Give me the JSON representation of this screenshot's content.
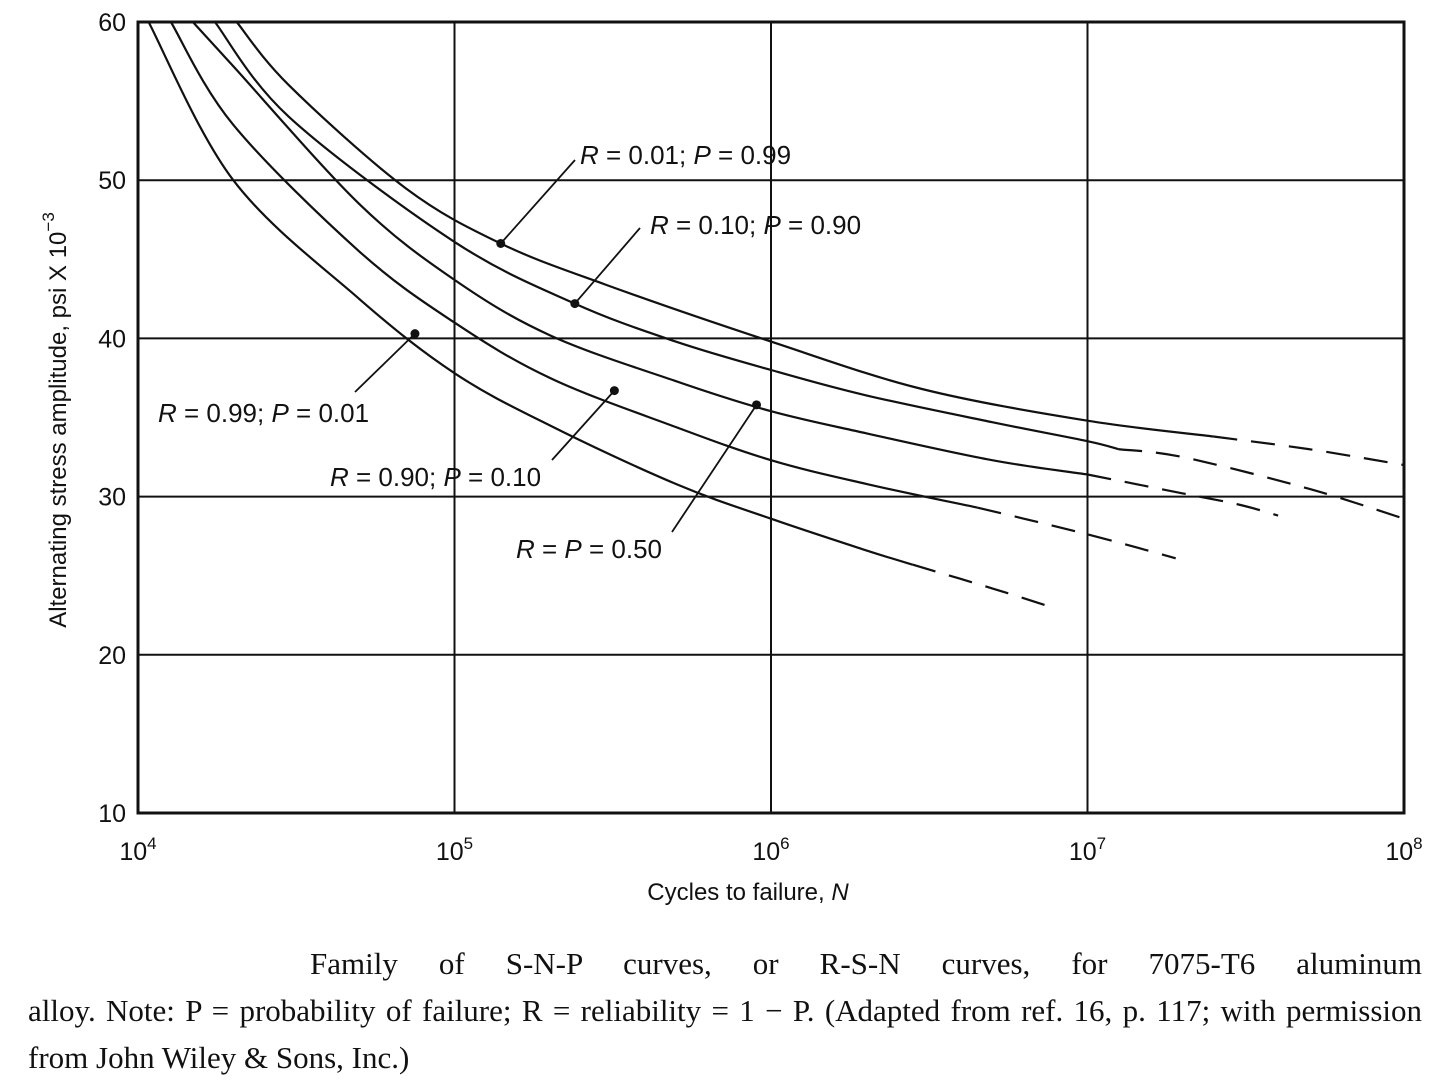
{
  "chart_data": {
    "type": "line",
    "xscale": "log",
    "xlim": [
      10000,
      100000000
    ],
    "ylim": [
      10,
      60
    ],
    "grid": true,
    "xlabel": "Cycles to failure, N",
    "ylabel": "Alternating stress amplitude, psi X 10",
    "ylabel_exponent": "−3",
    "y_ticks": [
      "10",
      "20",
      "30",
      "40",
      "50",
      "60"
    ],
    "x_ticks": [
      {
        "base": "10",
        "exp": "4"
      },
      {
        "base": "10",
        "exp": "5"
      },
      {
        "base": "10",
        "exp": "6"
      },
      {
        "base": "10",
        "exp": "7"
      },
      {
        "base": "10",
        "exp": "8"
      }
    ],
    "series": [
      {
        "name": "R = 0.99; P = 0.01",
        "solid": [
          [
            10800,
            60
          ],
          [
            20000,
            50
          ],
          [
            50000,
            42.5
          ],
          [
            100000,
            37.8
          ],
          [
            200000,
            34.5
          ],
          [
            500000,
            30.8
          ],
          [
            1000000,
            28.6
          ],
          [
            2000000,
            26.6
          ],
          [
            2800000,
            25.7
          ]
        ],
        "dashed": [
          [
            2800000,
            25.7
          ],
          [
            5000000,
            24.2
          ],
          [
            8000000,
            22.9
          ]
        ],
        "marker": [
          75000,
          40.3
        ]
      },
      {
        "name": "R = 0.90; P = 0.10",
        "solid": [
          [
            12700,
            60
          ],
          [
            20000,
            53.5
          ],
          [
            50000,
            45.5
          ],
          [
            100000,
            41
          ],
          [
            200000,
            37.5
          ],
          [
            500000,
            34.4
          ],
          [
            1000000,
            32.3
          ],
          [
            2000000,
            30.8
          ],
          [
            4500000,
            29.3
          ]
        ],
        "dashed": [
          [
            4500000,
            29.3
          ],
          [
            8000000,
            28.1
          ],
          [
            12000000,
            27.2
          ],
          [
            19000000,
            26.1
          ]
        ],
        "marker": [
          320000,
          36.7
        ]
      },
      {
        "name": "R = P = 0.50",
        "solid": [
          [
            14900,
            60
          ],
          [
            20000,
            57.2
          ],
          [
            50000,
            48.5
          ],
          [
            100000,
            43.7
          ],
          [
            200000,
            40.2
          ],
          [
            500000,
            37.3
          ],
          [
            1000000,
            35.4
          ],
          [
            2000000,
            34
          ],
          [
            5000000,
            32.3
          ],
          [
            10000000,
            31.4
          ]
        ],
        "dashed": [
          [
            10000000,
            31.4
          ],
          [
            20000000,
            30.2
          ],
          [
            30000000,
            29.5
          ],
          [
            40000000,
            28.8
          ]
        ],
        "marker": [
          900000,
          35.8
        ]
      },
      {
        "name": "R = 0.10; P = 0.90",
        "solid": [
          [
            17500,
            60
          ],
          [
            30000,
            54
          ],
          [
            100000,
            46.1
          ],
          [
            240000,
            42.2
          ],
          [
            500000,
            39.8
          ],
          [
            1000000,
            38
          ],
          [
            2000000,
            36.4
          ],
          [
            5000000,
            34.7
          ],
          [
            10000000,
            33.5
          ],
          [
            12500000,
            33
          ]
        ],
        "dashed": [
          [
            12500000,
            33
          ],
          [
            20000000,
            32.5
          ],
          [
            50000000,
            30.5
          ],
          [
            100000000,
            28.6
          ]
        ],
        "marker": [
          240000,
          42.2
        ]
      },
      {
        "name": "R = 0.01; P = 0.99",
        "solid": [
          [
            20500,
            60
          ],
          [
            30000,
            56
          ],
          [
            70000,
            49.5
          ],
          [
            140000,
            46
          ],
          [
            300000,
            43.4
          ],
          [
            1000000,
            39.8
          ],
          [
            3000000,
            36.8
          ],
          [
            10000000,
            34.8
          ],
          [
            25000000,
            33.8
          ]
        ],
        "dashed": [
          [
            25000000,
            33.8
          ],
          [
            50000000,
            33
          ],
          [
            100000000,
            32
          ]
        ],
        "marker": [
          140000,
          46
        ]
      }
    ],
    "annotations": [
      {
        "R": "0.01",
        "P": "0.99",
        "series": 4
      },
      {
        "R": "0.10",
        "P": "0.90",
        "series": 3
      },
      {
        "R": "0.99",
        "P": "0.01",
        "series": 0
      },
      {
        "R": "0.90",
        "P": "0.10",
        "series": 1
      },
      {
        "R": "P",
        "P": "0.50",
        "series": 2
      }
    ]
  },
  "caption": {
    "line1": "Family of S-N-P curves, or R-S-N curves, for 7075-T6 aluminum",
    "rest": "alloy. Note: P = probability of failure; R = reliability = 1 − P. (Adapted from ref. 16, p. 117; with permission from John Wiley & Sons, Inc.)"
  }
}
